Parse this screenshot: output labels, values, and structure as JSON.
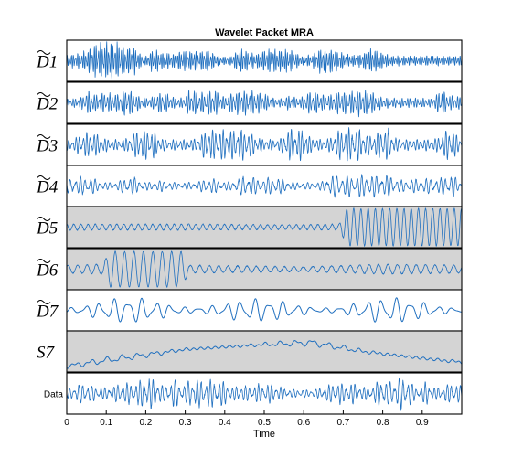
{
  "chart_data": {
    "type": "line",
    "title": "Wavelet Packet MRA",
    "xlabel": "Time",
    "xlim": [
      0,
      1
    ],
    "x_ticks": [
      "0",
      "0.1",
      "0.2",
      "0.3",
      "0.4",
      "0.5",
      "0.6",
      "0.7",
      "0.8",
      "0.9"
    ],
    "line_color": "#1f6fbf",
    "highlight_color": "#d4d4d4",
    "series": [
      {
        "name": "D1",
        "label": "D1",
        "highlighted": false,
        "model": {
          "kind": "bursty",
          "freq": 190,
          "envelope": [
            [
              0,
              0.45
            ],
            [
              0.05,
              0.75
            ],
            [
              0.12,
              1.0
            ],
            [
              0.2,
              0.55
            ],
            [
              0.3,
              0.5
            ],
            [
              0.45,
              0.6
            ],
            [
              0.6,
              0.55
            ],
            [
              0.72,
              0.65
            ],
            [
              0.85,
              0.7
            ],
            [
              1.0,
              0.7
            ]
          ]
        }
      },
      {
        "name": "D2",
        "label": "D2",
        "highlighted": false,
        "model": {
          "kind": "bursty",
          "freq": 150,
          "envelope": [
            [
              0,
              0.6
            ],
            [
              0.2,
              0.65
            ],
            [
              0.4,
              0.6
            ],
            [
              0.6,
              0.6
            ],
            [
              0.8,
              0.7
            ],
            [
              1.0,
              0.65
            ]
          ]
        }
      },
      {
        "name": "D3",
        "label": "D3",
        "highlighted": false,
        "model": {
          "kind": "bursty",
          "freq": 110,
          "envelope": [
            [
              0,
              0.7
            ],
            [
              0.25,
              0.75
            ],
            [
              0.5,
              0.75
            ],
            [
              0.75,
              0.8
            ],
            [
              1.0,
              0.8
            ]
          ]
        }
      },
      {
        "name": "D4",
        "label": "D4",
        "highlighted": false,
        "model": {
          "kind": "bursty",
          "freq": 80,
          "envelope": [
            [
              0,
              0.45
            ],
            [
              0.3,
              0.5
            ],
            [
              0.6,
              0.5
            ],
            [
              0.75,
              0.55
            ],
            [
              1.0,
              0.55
            ]
          ]
        }
      },
      {
        "name": "D5",
        "label": "D5",
        "highlighted": true,
        "model": {
          "kind": "chirp",
          "freq": 55,
          "envelope": [
            [
              0,
              0.15
            ],
            [
              0.3,
              0.15
            ],
            [
              0.55,
              0.12
            ],
            [
              0.69,
              0.15
            ],
            [
              0.71,
              0.95
            ],
            [
              1.0,
              0.95
            ]
          ]
        }
      },
      {
        "name": "D6",
        "label": "D6",
        "highlighted": true,
        "model": {
          "kind": "chirp",
          "freq": 42,
          "envelope": [
            [
              0,
              0.2
            ],
            [
              0.09,
              0.25
            ],
            [
              0.11,
              0.9
            ],
            [
              0.29,
              0.9
            ],
            [
              0.31,
              0.2
            ],
            [
              0.6,
              0.12
            ],
            [
              0.8,
              0.25
            ],
            [
              1.0,
              0.2
            ]
          ]
        }
      },
      {
        "name": "D7",
        "label": "D7",
        "highlighted": false,
        "model": {
          "kind": "wavy",
          "freq": 28,
          "envelope": [
            [
              0,
              0.6
            ],
            [
              0.3,
              0.75
            ],
            [
              0.5,
              0.6
            ],
            [
              0.7,
              0.65
            ],
            [
              1.0,
              0.7
            ]
          ]
        }
      },
      {
        "name": "S7",
        "label": "S7",
        "highlighted": true,
        "model": {
          "kind": "smooth",
          "freq": 6,
          "envelope": [
            [
              0,
              -0.75
            ],
            [
              0.1,
              -0.45
            ],
            [
              0.3,
              0.1
            ],
            [
              0.5,
              0.35
            ],
            [
              0.62,
              0.45
            ],
            [
              0.75,
              0.0
            ],
            [
              0.9,
              -0.35
            ],
            [
              1.0,
              -0.55
            ]
          ]
        }
      },
      {
        "name": "Data",
        "label": "Data",
        "highlighted": false,
        "model": {
          "kind": "bursty",
          "freq": 90,
          "envelope": [
            [
              0,
              0.45
            ],
            [
              0.1,
              0.8
            ],
            [
              0.3,
              0.75
            ],
            [
              0.5,
              0.5
            ],
            [
              0.7,
              0.6
            ],
            [
              0.8,
              0.85
            ],
            [
              1.0,
              0.7
            ]
          ]
        }
      }
    ]
  }
}
